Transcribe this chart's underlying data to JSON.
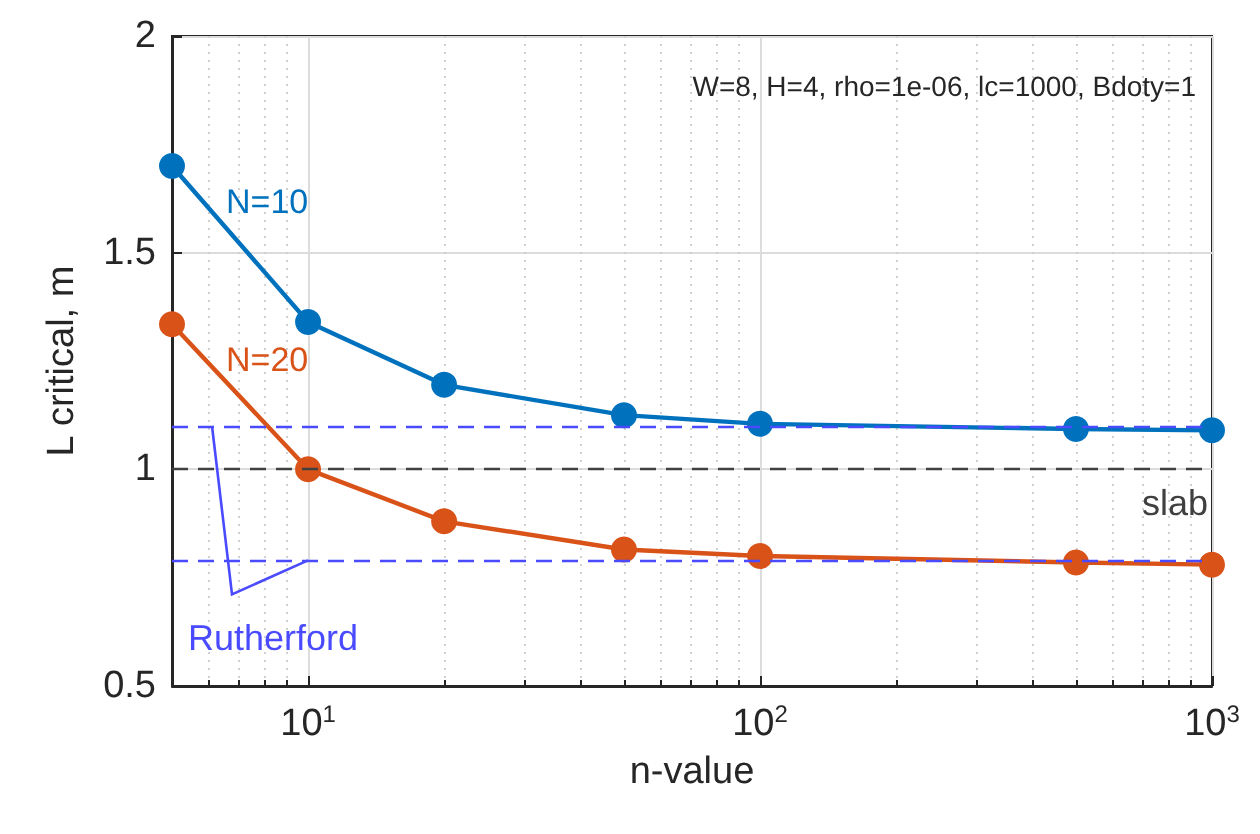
{
  "chart_data": {
    "type": "line",
    "xlabel": "n-value",
    "ylabel": "L critical, m",
    "x": [
      5,
      10,
      20,
      50,
      100,
      500,
      1000
    ],
    "series": [
      {
        "name": "N=10",
        "color": "#0072bd",
        "values": [
          1.7,
          1.34,
          1.195,
          1.125,
          1.105,
          1.093,
          1.09
        ]
      },
      {
        "name": "N=20",
        "color": "#d95319",
        "values": [
          1.335,
          1.0,
          0.88,
          0.815,
          0.8,
          0.785,
          0.78
        ]
      }
    ],
    "xlim": [
      5,
      1000
    ],
    "xticks": [
      {
        "value": 10,
        "label": "10$^{1}$"
      },
      {
        "value": 100,
        "label": "10$^{2}$"
      },
      {
        "value": 1000,
        "label": "10$^{3}$"
      }
    ],
    "ylim": [
      0.5,
      2
    ],
    "yticks": [
      0.5,
      1,
      1.5,
      2
    ],
    "log": "x",
    "grid": true,
    "legend": false,
    "marker": "circle",
    "line_style": "solid",
    "ref_lines": [
      {
        "axis": "y",
        "value": 1.1,
        "color": "#4a4aff",
        "line_style": "dashed"
      },
      {
        "axis": "y",
        "value": 0.79,
        "label": "Rutherford",
        "color": "#4a4aff",
        "line_style": "dashed"
      },
      {
        "axis": "y",
        "value": 1,
        "label": "slab",
        "color": "#404040",
        "line_style": "dashed"
      }
    ],
    "annotations": [
      "W=8, H=4, rho=1e-06, lc=1000, Bdoty=1"
    ]
  }
}
